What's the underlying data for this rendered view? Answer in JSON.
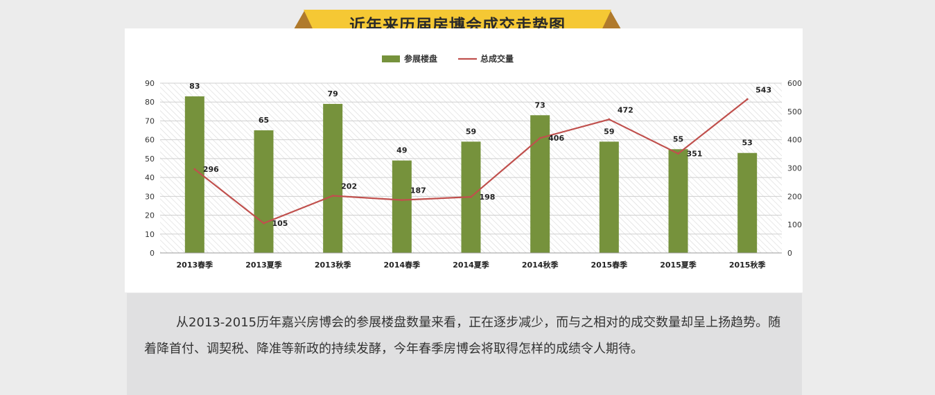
{
  "title": "近年来历届房博会成交走势图",
  "description": "从2013-2015历年嘉兴房博会的参展楼盘数量来看，正在逐步减少，而与之相对的成交数量却呈上扬趋势。随着降首付、调契税、降准等新政的持续发酵，今年春季房博会将取得怎样的成绩令人期待。",
  "colors": {
    "bar": "#76923c",
    "line": "#c0504d",
    "banner": "#f5c834",
    "banner_side": "#b07a2c"
  },
  "chart_data": {
    "type": "bar",
    "categories": [
      "2013春季",
      "2013夏季",
      "2013秋季",
      "2014春季",
      "2014夏季",
      "2014秋季",
      "2015春季",
      "2015夏季",
      "2015秋季"
    ],
    "series": [
      {
        "name": "参展楼盘",
        "type": "bar",
        "axis": "left",
        "values": [
          83,
          65,
          79,
          49,
          59,
          73,
          59,
          55,
          53
        ]
      },
      {
        "name": "总成交量",
        "type": "line",
        "axis": "right",
        "values": [
          296,
          105,
          202,
          187,
          198,
          406,
          472,
          351,
          543
        ]
      }
    ],
    "ylim_left": [
      0,
      90
    ],
    "ylim_right": [
      0,
      600
    ],
    "yticks_left": [
      "0",
      "10",
      "20",
      "30",
      "40",
      "50",
      "60",
      "70",
      "80",
      "90"
    ],
    "yticks_right": [
      "0",
      "100",
      "200",
      "300",
      "400",
      "500",
      "600"
    ],
    "legend": "top-center",
    "grid": true
  }
}
